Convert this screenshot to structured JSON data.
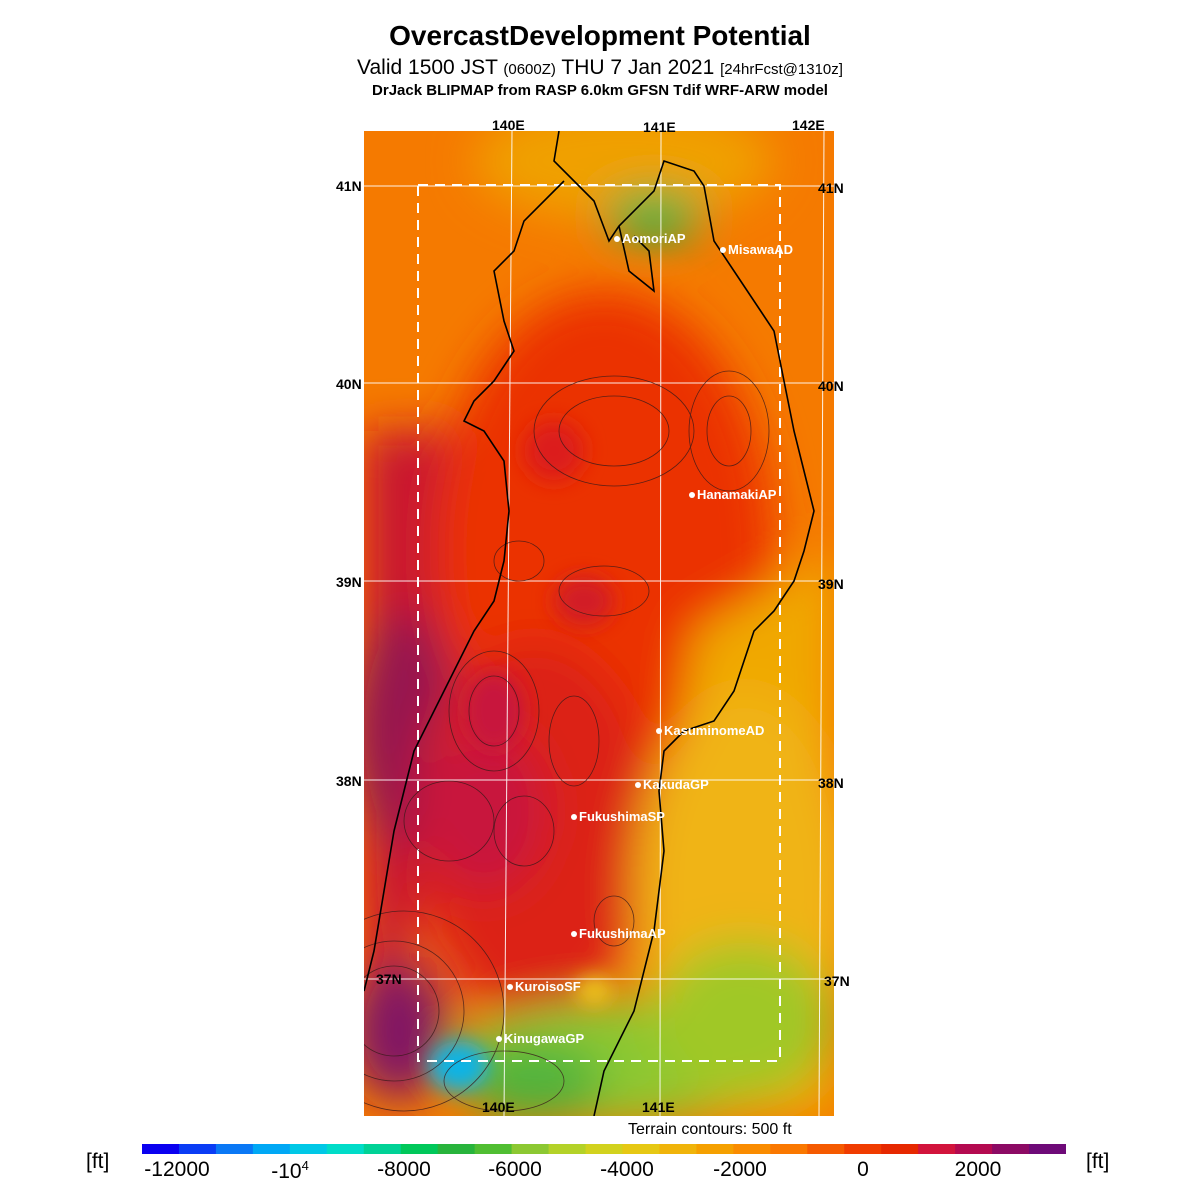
{
  "header": {
    "title": "OvercastDevelopment Potential",
    "subtitle_valid": "Valid 1500 JST",
    "subtitle_z": "(0600Z)",
    "subtitle_date": "THU 7 Jan 2021",
    "subtitle_fcst": "[24hrFcst@1310z]",
    "model_line": "DrJack BLIPMAP from RASP 6.0km GFSN Tdif WRF-ARW model"
  },
  "axes": {
    "top_lon_labels": [
      "140E",
      "141E",
      "142E"
    ],
    "bottom_lon_labels": [
      "140E",
      "141E"
    ],
    "left_lat_labels": [
      "41N",
      "40N",
      "39N",
      "38N",
      "37N"
    ],
    "right_lat_labels": [
      "41N",
      "40N",
      "39N",
      "38N",
      "37N"
    ]
  },
  "stations": [
    {
      "name": "AomoriAP"
    },
    {
      "name": "MisawaAD"
    },
    {
      "name": "HanamakiAP"
    },
    {
      "name": "KasuminomeAD"
    },
    {
      "name": "KakudaGP"
    },
    {
      "name": "FukushimaSP"
    },
    {
      "name": "FukushimaAP"
    },
    {
      "name": "KuroisoSF"
    },
    {
      "name": "KinugawaGP"
    }
  ],
  "legend": {
    "contour_note": "Terrain contours: 500 ft",
    "unit_left": "[ft]",
    "unit_right": "[ft]",
    "tick_labels": [
      "-12000",
      "-10",
      "-8000",
      "-6000",
      "-4000",
      "-2000",
      "0",
      "2000"
    ],
    "tick_exponent": "4",
    "colors": [
      "#0a00f0",
      "#0a3cf5",
      "#0a78f5",
      "#00a8f5",
      "#00c8e6",
      "#00dcc8",
      "#00d296",
      "#00c85a",
      "#28b43c",
      "#50be32",
      "#8cc832",
      "#b4d228",
      "#d2d21e",
      "#e6c814",
      "#f0b40a",
      "#f5a000",
      "#fa8c00",
      "#fa7800",
      "#f55a00",
      "#f03c00",
      "#e62800",
      "#d2143c",
      "#b40a50",
      "#8c0a64",
      "#6e0a78"
    ]
  }
}
